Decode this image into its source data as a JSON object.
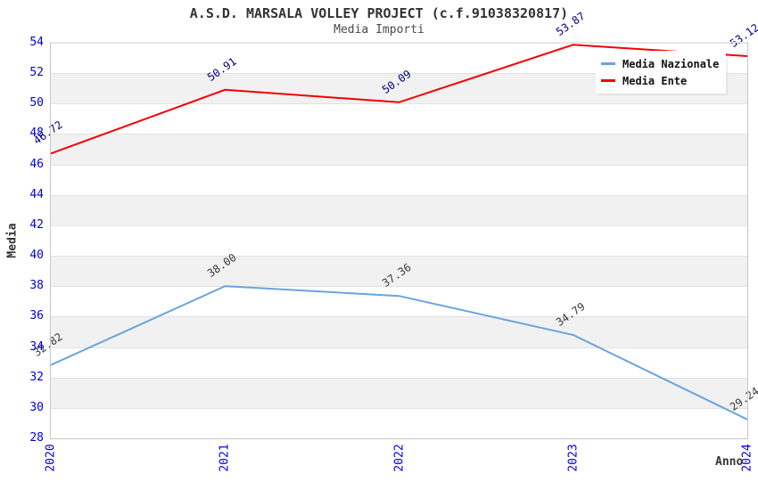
{
  "title": "A.S.D. MARSALA VOLLEY PROJECT (c.f.91038320817)",
  "subtitle": "Media Importi",
  "axes": {
    "y_label": "Media",
    "x_label": "Anno"
  },
  "colors": {
    "tick_text": "#0000e0",
    "band_gray": "#f1f1f1",
    "grid_line": "#e2e2e2",
    "axis_border": "#c6c6c6"
  },
  "chart_data": {
    "type": "line",
    "title": "A.S.D. MARSALA VOLLEY PROJECT (c.f.91038320817)",
    "subtitle": "Media Importi",
    "xlabel": "Anno",
    "ylabel": "Media",
    "x": [
      "2020",
      "2021",
      "2022",
      "2023",
      "2024"
    ],
    "y_ticks": [
      54,
      52,
      50,
      48,
      46,
      44,
      42,
      40,
      38,
      36,
      34,
      32,
      30,
      28
    ],
    "ylim": [
      28,
      54
    ],
    "grid": "alternating-bands",
    "legend_position": "top-right",
    "series": [
      {
        "name": "Media Nazionale",
        "color": "#6ba4dd",
        "label_color": "#3a3a3a",
        "values": [
          32.82,
          38.0,
          37.36,
          34.79,
          29.24
        ]
      },
      {
        "name": "Media Ente",
        "color": "#f40000",
        "label_color": "#000080",
        "values": [
          46.72,
          50.91,
          50.09,
          53.87,
          53.12
        ]
      }
    ]
  }
}
